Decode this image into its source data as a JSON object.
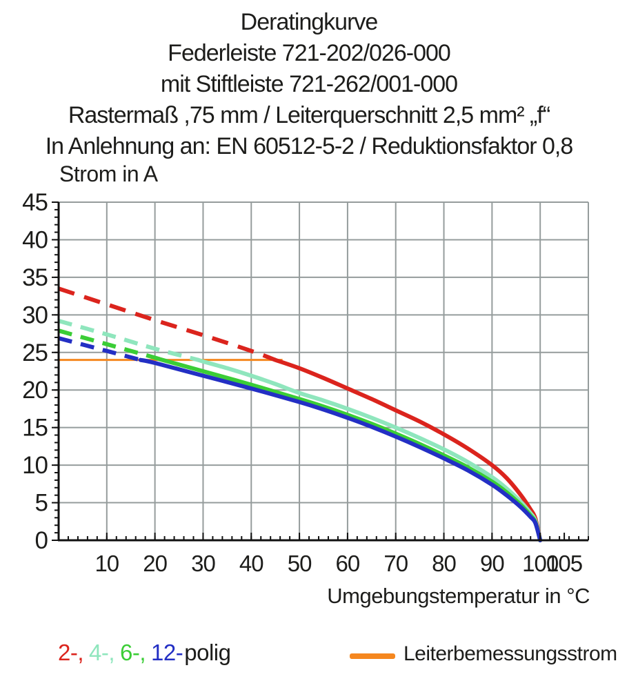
{
  "title": {
    "lines": [
      "Deratingkurve",
      "Federleiste 721-202/026-000",
      "mit Stiftleiste 721-262/001-000",
      "Rastermaß ,75 mm / Leiterquerschnitt 2,5 mm² „f“",
      "In Anlehnung an: EN 60512-5-2 / Reduktionsfaktor 0,8"
    ]
  },
  "chart_data": {
    "type": "line",
    "title": "Deratingkurve",
    "xlabel": "Umgebungstemperatur in °C",
    "ylabel": "Strom in A",
    "xlim": [
      0,
      110
    ],
    "ylim": [
      0,
      45
    ],
    "grid": true,
    "x_major_ticks": [
      10,
      20,
      30,
      40,
      50,
      60,
      70,
      80,
      90,
      100,
      105
    ],
    "x_gridline_ticks": [
      10,
      20,
      30,
      40,
      50,
      60,
      70,
      80,
      90,
      100
    ],
    "y_major_ticks": [
      0,
      5,
      10,
      15,
      20,
      25,
      30,
      35,
      40,
      45
    ],
    "x_minor_step": 2,
    "y_minor_step": 1,
    "colors": {
      "grid": "#959c9c",
      "axis": "#111111",
      "text": "#1d1d1b"
    },
    "rated_line": {
      "label": "Leiterbemessungsstrom",
      "value_A": 24,
      "x_start": 0,
      "x_end": 46.5,
      "color": "#f5871f"
    },
    "legend_note": "dashed curve sections lie above the rated conductor current",
    "series": [
      {
        "name": "2-polig",
        "color": "#db241d",
        "split_x": 45,
        "dash": "24 15",
        "points": [
          [
            0,
            33.5
          ],
          [
            10,
            31.4
          ],
          [
            20,
            29.3
          ],
          [
            30,
            27.3
          ],
          [
            40,
            25.2
          ],
          [
            45,
            24.0
          ],
          [
            50,
            22.9
          ],
          [
            55,
            21.6
          ],
          [
            60,
            20.2
          ],
          [
            65,
            18.8
          ],
          [
            70,
            17.3
          ],
          [
            75,
            15.8
          ],
          [
            80,
            14.1
          ],
          [
            85,
            12.2
          ],
          [
            90,
            10.0
          ],
          [
            93,
            8.3
          ],
          [
            96,
            6.0
          ],
          [
            98,
            4.1
          ],
          [
            99,
            2.9
          ],
          [
            100,
            0
          ]
        ]
      },
      {
        "name": "4-polig",
        "color": "#8fe6bd",
        "split_x": 29,
        "dash": "20 13",
        "points": [
          [
            0,
            29.2
          ],
          [
            10,
            27.4
          ],
          [
            20,
            25.5
          ],
          [
            29,
            24.0
          ],
          [
            30,
            23.8
          ],
          [
            35,
            22.9
          ],
          [
            40,
            21.9
          ],
          [
            45,
            20.8
          ],
          [
            50,
            19.6
          ],
          [
            55,
            18.6
          ],
          [
            60,
            17.5
          ],
          [
            65,
            16.3
          ],
          [
            70,
            15.0
          ],
          [
            75,
            13.6
          ],
          [
            80,
            12.1
          ],
          [
            85,
            10.4
          ],
          [
            90,
            8.4
          ],
          [
            93,
            6.9
          ],
          [
            96,
            5.1
          ],
          [
            98,
            3.6
          ],
          [
            99,
            2.6
          ],
          [
            100,
            0
          ]
        ]
      },
      {
        "name": "6-polig",
        "color": "#3bcd36",
        "split_x": 21,
        "dash": "20 13",
        "points": [
          [
            0,
            27.9
          ],
          [
            10,
            26.1
          ],
          [
            20,
            24.3
          ],
          [
            21,
            24.1
          ],
          [
            30,
            22.5
          ],
          [
            40,
            20.7
          ],
          [
            50,
            18.8
          ],
          [
            55,
            17.8
          ],
          [
            60,
            16.7
          ],
          [
            65,
            15.5
          ],
          [
            70,
            14.2
          ],
          [
            75,
            12.8
          ],
          [
            80,
            11.3
          ],
          [
            85,
            9.7
          ],
          [
            90,
            7.8
          ],
          [
            93,
            6.4
          ],
          [
            96,
            4.7
          ],
          [
            98,
            3.3
          ],
          [
            99,
            2.4
          ],
          [
            100,
            0
          ]
        ]
      },
      {
        "name": "12-polig",
        "color": "#232fc4",
        "split_x": 17,
        "dash": "20 13",
        "points": [
          [
            0,
            26.9
          ],
          [
            10,
            25.2
          ],
          [
            17,
            24.0
          ],
          [
            20,
            23.6
          ],
          [
            30,
            21.9
          ],
          [
            40,
            20.2
          ],
          [
            50,
            18.4
          ],
          [
            55,
            17.4
          ],
          [
            60,
            16.3
          ],
          [
            65,
            15.1
          ],
          [
            70,
            13.8
          ],
          [
            75,
            12.4
          ],
          [
            80,
            10.9
          ],
          [
            85,
            9.3
          ],
          [
            90,
            7.4
          ],
          [
            93,
            6.0
          ],
          [
            96,
            4.4
          ],
          [
            98,
            3.1
          ],
          [
            99,
            2.3
          ],
          [
            100,
            0
          ]
        ]
      }
    ]
  },
  "legend": {
    "poles": [
      {
        "text": "2-,",
        "color": "#db241d"
      },
      {
        "text": "4-,",
        "color": "#8fe6bd"
      },
      {
        "text": "6-,",
        "color": "#3bcd36"
      },
      {
        "text": "12-",
        "color": "#232fc4"
      }
    ],
    "suffix": "polig",
    "rated_label": "Leiterbemessungsstrom"
  }
}
